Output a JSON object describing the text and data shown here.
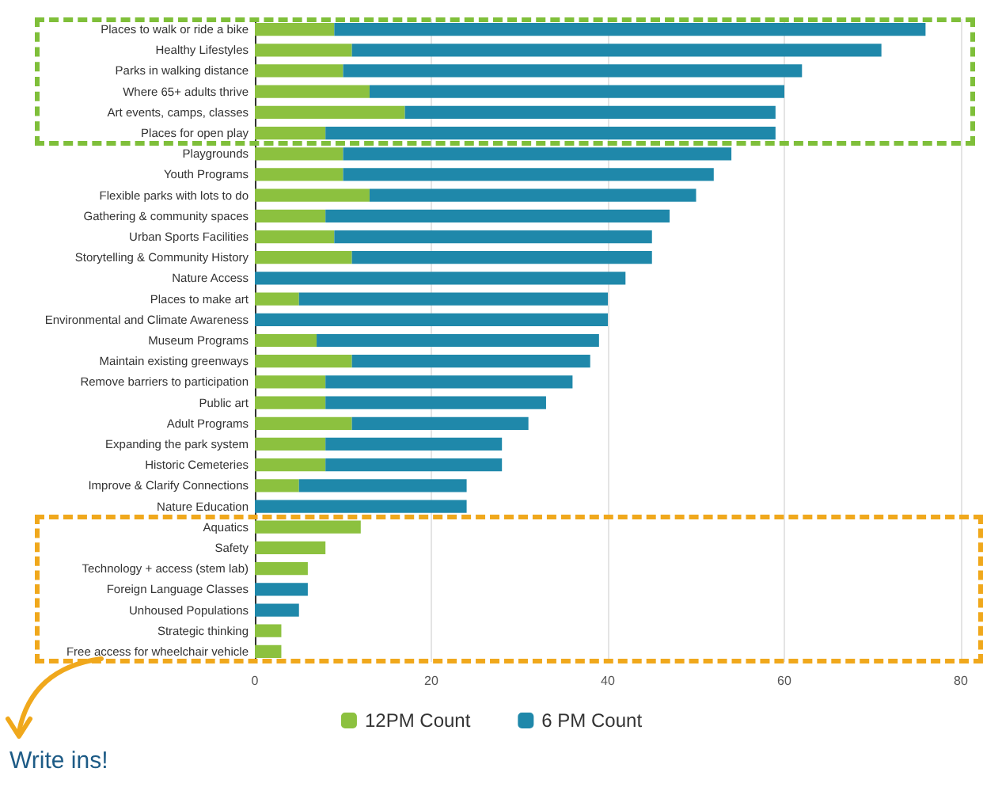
{
  "chart_data": {
    "type": "bar",
    "orientation": "horizontal",
    "stacked": true,
    "categories": [
      "Places to walk or ride a bike",
      "Healthy Lifestyles",
      "Parks in walking distance",
      "Where 65+ adults thrive",
      "Art events, camps, classes",
      "Places for open play",
      "Playgrounds",
      "Youth Programs",
      "Flexible parks with lots to do",
      "Gathering & community spaces",
      "Urban Sports Facilities",
      "Storytelling & Community History",
      "Nature Access",
      "Places to make art",
      "Environmental and Climate Awareness",
      "Museum Programs",
      "Maintain existing greenways",
      "Remove barriers to participation",
      "Public art",
      "Adult Programs",
      "Expanding the park system",
      "Historic Cemeteries",
      "Improve & Clarify Connections",
      "Nature Education",
      "Aquatics",
      "Safety",
      "Technology + access (stem lab)",
      "Foreign Language Classes",
      "Unhoused Populations",
      "Strategic thinking",
      "Free access for wheelchair vehicle"
    ],
    "series": [
      {
        "name": "12PM Count",
        "color": "#8cc13f",
        "values": [
          9,
          11,
          10,
          13,
          17,
          8,
          10,
          10,
          13,
          8,
          9,
          11,
          0,
          5,
          0,
          7,
          11,
          8,
          8,
          11,
          8,
          8,
          5,
          0,
          12,
          8,
          6,
          0,
          0,
          3,
          3
        ]
      },
      {
        "name": "6 PM Count",
        "color": "#1f88aa",
        "values": [
          67,
          60,
          52,
          47,
          42,
          51,
          44,
          42,
          37,
          39,
          36,
          34,
          42,
          35,
          40,
          32,
          27,
          28,
          25,
          20,
          20,
          20,
          19,
          24,
          0,
          0,
          0,
          6,
          5,
          0,
          0
        ]
      }
    ],
    "xlim": [
      0,
      80
    ],
    "xticks": [
      0,
      20,
      40,
      60,
      80
    ],
    "grid": "x",
    "legend": "bottom",
    "annotations": [
      "Write ins!"
    ]
  }
}
